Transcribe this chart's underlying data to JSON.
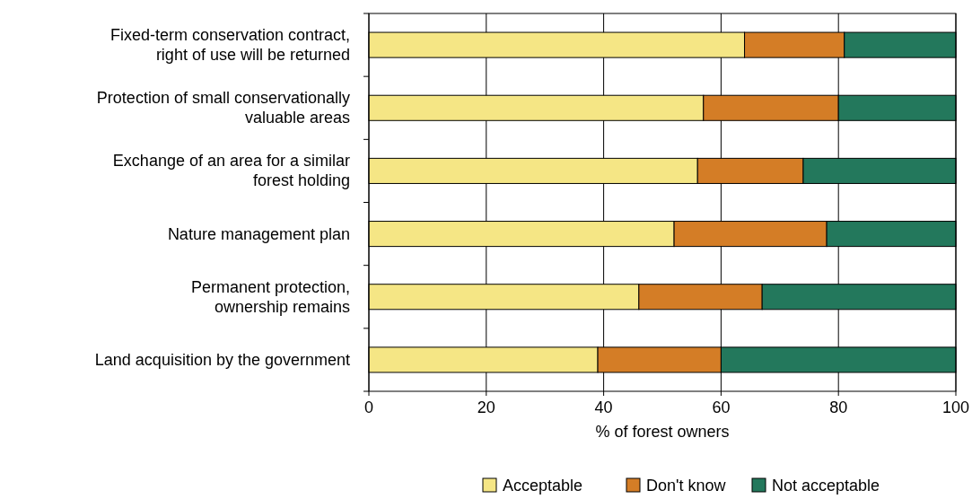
{
  "chart_data": {
    "type": "bar",
    "orientation": "horizontal",
    "stacked": true,
    "xlabel": "% of forest owners",
    "categories": [
      "Fixed-term conservation contract, right of use will be returned",
      "Protection of small conservationally valuable areas",
      "Exchange of an area for a similar forest holding",
      "Nature management plan",
      "Permanent protection, ownership remains",
      "Land acquisition by the government"
    ],
    "series": [
      {
        "name": "Acceptable",
        "color": "#f5e685",
        "values": [
          64,
          57,
          56,
          52,
          46,
          39
        ]
      },
      {
        "name": "Don't know",
        "color": "#d47d26",
        "values": [
          17,
          23,
          18,
          26,
          21,
          21
        ]
      },
      {
        "name": "Not acceptable",
        "color": "#23785c",
        "values": [
          19,
          20,
          26,
          22,
          33,
          40
        ]
      }
    ],
    "xlim": [
      0,
      100
    ],
    "xticks": [
      0,
      20,
      40,
      60,
      80,
      100
    ],
    "grid": "x",
    "legend": "bottom"
  }
}
